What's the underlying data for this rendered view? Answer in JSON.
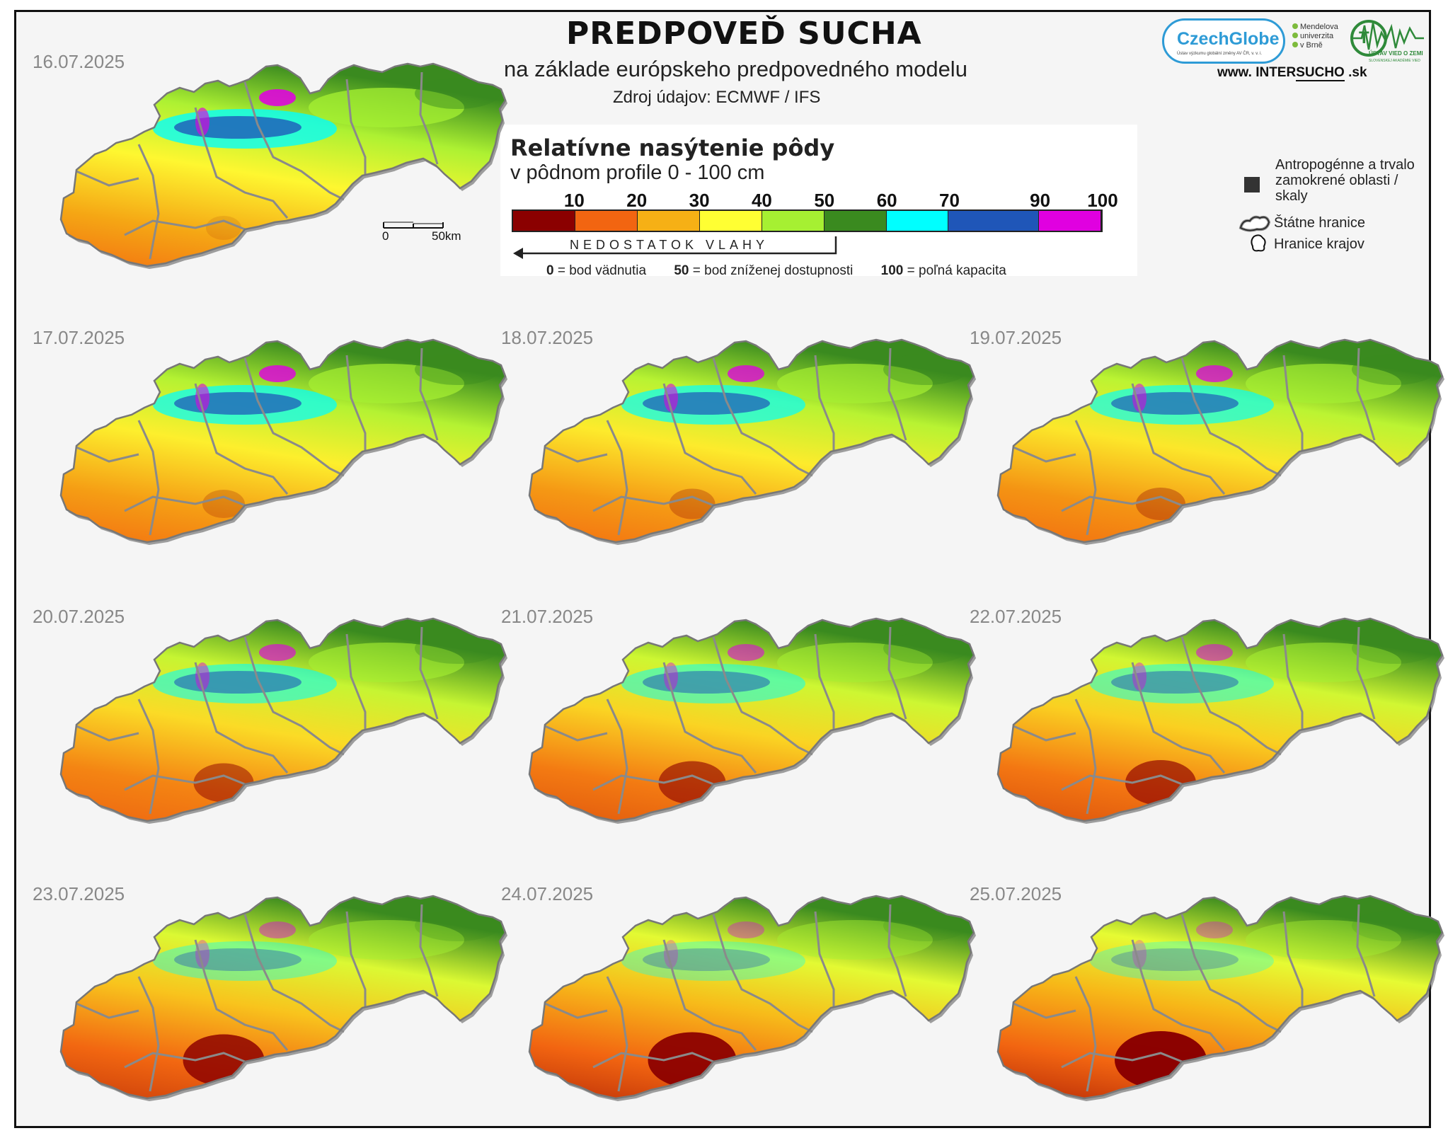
{
  "header": {
    "title": "PREDPOVEĎ SUCHA",
    "subtitle": "na základe európskeho predpovedného modelu",
    "source": "Zdroj údajov: ECMWF / IFS"
  },
  "logos": {
    "czechglobe": "CzechGlobe",
    "czechglobe_small": "Ústav výzkumu globální změny AV ČR, v. v. i.",
    "mendel_lines": [
      "Mendelova",
      "univerzita",
      "v Brně"
    ],
    "uvz_line1": "ÚSTAV VIED O ZEMI",
    "uvz_line2": "SLOVENSKEJ AKADÉMIE VIED",
    "website_prefix": "www. INTER",
    "website_u": "SUCHO",
    "website_suffix": " .sk"
  },
  "legend": {
    "title": "Relatívne nasýtenie pôdy",
    "subtitle": "v pôdnom profile 0 - 100 cm",
    "ticks": [
      "10",
      "20",
      "30",
      "40",
      "50",
      "60",
      "70",
      "90",
      "100"
    ],
    "colors": [
      "#8b0000",
      "#f26511",
      "#f6b015",
      "#ffff33",
      "#a6f032",
      "#3a8a1f",
      "#00ffff",
      "#1f56b8",
      "#e000e0"
    ],
    "arrow_label": "NEDOSTATOK VLAHY",
    "def0_num": "0",
    "def0_text": "= bod vädnutia",
    "def50_num": "50",
    "def50_text": "= bod zníženej dostupnosti",
    "def100_num": "100",
    "def100_text": "= poľná kapacita"
  },
  "side_legend": {
    "anthro": "Antropogénne a trvalo zamokrené oblasti / skaly",
    "state": "Štátne hranice",
    "regions": "Hranice krajov"
  },
  "scalebar": {
    "zero": "0",
    "dist": "50km"
  },
  "maps": [
    {
      "date": "16.07.2025",
      "dry": 0.1
    },
    {
      "date": "17.07.2025",
      "dry": 0.2
    },
    {
      "date": "18.07.2025",
      "dry": 0.25
    },
    {
      "date": "19.07.2025",
      "dry": 0.3
    },
    {
      "date": "20.07.2025",
      "dry": 0.45
    },
    {
      "date": "21.07.2025",
      "dry": 0.55
    },
    {
      "date": "22.07.2025",
      "dry": 0.6
    },
    {
      "date": "23.07.2025",
      "dry": 0.75
    },
    {
      "date": "24.07.2025",
      "dry": 0.85
    },
    {
      "date": "25.07.2025",
      "dry": 0.9
    }
  ]
}
